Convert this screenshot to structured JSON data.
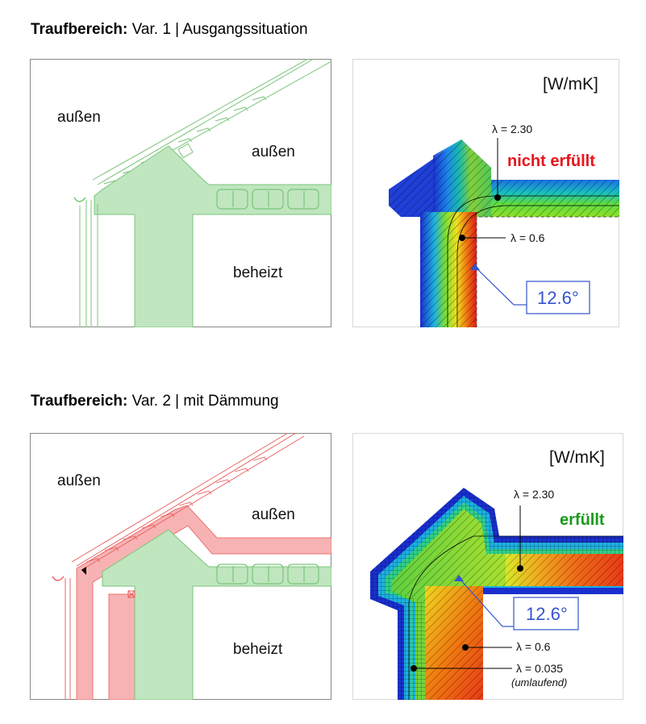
{
  "var1": {
    "title_bold": "Traufbereich:",
    "title_rest": " Var. 1 | Ausgangssituation",
    "left": {
      "label_outside_1": "außen",
      "label_outside_2": "außen",
      "label_heated": "beheizt"
    },
    "right": {
      "unit": "[W/mK]",
      "lambda_top": "λ = 2.30",
      "status": "nicht erfüllt",
      "lambda_wall": "λ = 0.6",
      "angle": "12.6°"
    }
  },
  "var2": {
    "title_bold": "Traufbereich:",
    "title_rest": " Var. 2 | mit Dämmung",
    "left": {
      "label_outside_1": "außen",
      "label_outside_2": "außen",
      "label_heated": "beheizt"
    },
    "right": {
      "unit": "[W/mK]",
      "lambda_top": "λ = 2.30",
      "status": "erfüllt",
      "lambda_wall": "λ = 0.6",
      "lambda_insul": "λ = 0.035",
      "insul_note": "(umlaufend)",
      "angle": "12.6°"
    }
  },
  "colors": {
    "status_fail": "#e8141c",
    "status_ok": "#1a9a1a",
    "callout": "#3355cc",
    "construction_green": "#bfe6bf",
    "insulation_red": "#f7b3b3"
  }
}
